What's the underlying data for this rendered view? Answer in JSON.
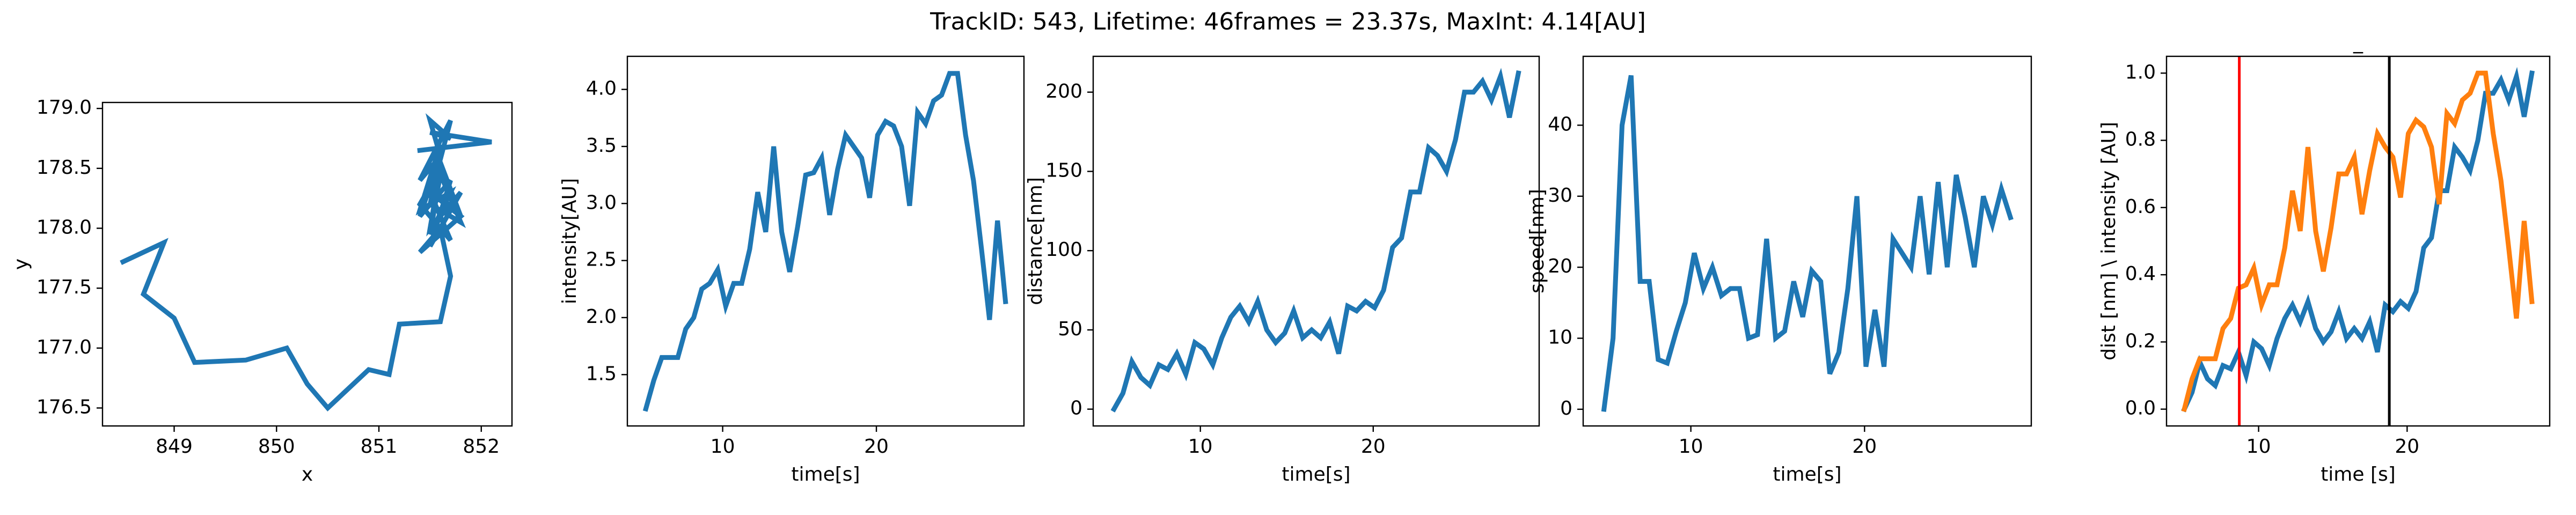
{
  "title": "TrackID: 543, Lifetime: 46frames = 23.37s, MaxInt: 4.14[AU]",
  "chart_data": [
    {
      "type": "line",
      "xlabel": "x",
      "ylabel": "y",
      "color": "#1f77b4",
      "x": [
        848.5,
        848.9,
        848.7,
        849.0,
        849.2,
        849.7,
        850.1,
        850.3,
        850.5,
        850.9,
        851.1,
        851.2,
        851.6,
        851.7,
        851.6,
        851.4,
        851.8,
        851.5,
        851.7,
        851.4,
        851.6,
        851.5,
        851.8,
        851.5,
        851.7,
        851.4,
        851.6,
        851.5,
        851.8,
        851.6,
        851.5,
        851.7,
        851.4,
        851.6,
        851.5,
        851.8,
        851.6,
        851.5,
        851.7,
        851.4,
        851.6,
        851.5,
        851.7,
        851.5,
        852.1,
        851.4
      ],
      "values": [
        177.72,
        177.88,
        177.45,
        177.25,
        176.88,
        176.9,
        177.0,
        176.7,
        176.5,
        176.82,
        176.78,
        177.2,
        177.22,
        177.6,
        178.0,
        177.8,
        178.1,
        178.3,
        177.9,
        178.2,
        178.5,
        178.0,
        178.3,
        177.85,
        178.4,
        178.1,
        178.6,
        178.2,
        178.05,
        178.45,
        177.95,
        178.3,
        178.15,
        178.7,
        178.35,
        178.1,
        178.55,
        178.25,
        178.9,
        178.4,
        178.6,
        178.9,
        178.75,
        178.8,
        178.72,
        178.65
      ],
      "xlim": [
        848.3,
        852.3
      ],
      "xticks": [
        849,
        850,
        851,
        852
      ],
      "ylim": [
        176.35,
        179.05
      ],
      "yticks": [
        176.5,
        {
          "value": 177,
          "label": "177.0"
        },
        177.5,
        {
          "value": 178,
          "label": "178.0"
        },
        178.5,
        {
          "value": 179,
          "label": "179.0"
        }
      ]
    },
    {
      "type": "line",
      "xlabel": "time[s]",
      "ylabel": "intensity[AU]",
      "color": "#1f77b4",
      "x": [
        5.0,
        5.52,
        6.04,
        6.56,
        7.08,
        7.6,
        8.12,
        8.64,
        9.16,
        9.68,
        10.2,
        10.72,
        11.24,
        11.76,
        12.28,
        12.8,
        13.32,
        13.84,
        14.36,
        14.88,
        15.4,
        15.92,
        16.44,
        16.96,
        17.48,
        18.0,
        18.52,
        19.04,
        19.56,
        20.08,
        20.6,
        21.12,
        21.64,
        22.16,
        22.68,
        23.2,
        23.72,
        24.24,
        24.76,
        25.28,
        25.8,
        26.32,
        26.84,
        27.36,
        27.88,
        28.4
      ],
      "values": [
        1.2,
        1.45,
        1.65,
        1.65,
        1.65,
        1.9,
        2.0,
        2.25,
        2.3,
        2.42,
        2.1,
        2.3,
        2.3,
        2.6,
        3.1,
        2.75,
        3.5,
        2.75,
        2.4,
        2.8,
        3.25,
        3.27,
        3.4,
        2.9,
        3.3,
        3.6,
        3.5,
        3.4,
        3.05,
        3.6,
        3.72,
        3.68,
        3.5,
        2.98,
        3.8,
        3.7,
        3.9,
        3.95,
        4.14,
        4.14,
        3.6,
        3.2,
        2.6,
        1.98,
        2.85,
        2.14
      ],
      "xlim": [
        3.8,
        29.6
      ],
      "xticks": [
        10,
        20
      ],
      "ylim": [
        1.05,
        4.29
      ],
      "yticks": [
        1.5,
        {
          "value": 2,
          "label": "2.0"
        },
        2.5,
        {
          "value": 3,
          "label": "3.0"
        },
        3.5,
        {
          "value": 4,
          "label": "4.0"
        }
      ]
    },
    {
      "type": "line",
      "xlabel": "time[s]",
      "ylabel": "distance[nm]",
      "color": "#1f77b4",
      "x": [
        5.0,
        5.52,
        6.04,
        6.56,
        7.08,
        7.6,
        8.12,
        8.64,
        9.16,
        9.68,
        10.2,
        10.72,
        11.24,
        11.76,
        12.28,
        12.8,
        13.32,
        13.84,
        14.36,
        14.88,
        15.4,
        15.92,
        16.44,
        16.96,
        17.48,
        18.0,
        18.52,
        19.04,
        19.56,
        20.08,
        20.6,
        21.12,
        21.64,
        22.16,
        22.68,
        23.2,
        23.72,
        24.24,
        24.76,
        25.28,
        25.8,
        26.32,
        26.84,
        27.36,
        27.88,
        28.4
      ],
      "values": [
        0,
        10,
        30,
        20,
        15,
        28,
        25,
        35,
        22,
        42,
        38,
        28,
        45,
        58,
        65,
        55,
        68,
        50,
        42,
        48,
        62,
        45,
        50,
        45,
        55,
        35,
        65,
        62,
        68,
        64,
        75,
        102,
        108,
        137,
        137,
        165,
        160,
        150,
        170,
        200,
        200,
        207,
        195,
        210,
        184,
        212
      ],
      "xlim": [
        3.8,
        29.6
      ],
      "xticks": [
        10,
        20
      ],
      "ylim": [
        -10.6,
        222.6
      ],
      "yticks": [
        0,
        50,
        100,
        150,
        200
      ]
    },
    {
      "type": "line",
      "xlabel": "time[s]",
      "ylabel": "speed[nm]",
      "color": "#1f77b4",
      "x": [
        5.0,
        5.52,
        6.04,
        6.56,
        7.08,
        7.6,
        8.12,
        8.64,
        9.16,
        9.68,
        10.2,
        10.72,
        11.24,
        11.76,
        12.28,
        12.8,
        13.32,
        13.84,
        14.36,
        14.88,
        15.4,
        15.92,
        16.44,
        16.96,
        17.48,
        18.0,
        18.52,
        19.04,
        19.56,
        20.08,
        20.6,
        21.12,
        21.64,
        22.16,
        22.68,
        23.2,
        23.72,
        24.24,
        24.76,
        25.28,
        25.8,
        26.32,
        26.84,
        27.36,
        27.88,
        28.4
      ],
      "values": [
        0,
        10,
        40,
        47,
        18,
        18,
        7,
        6.5,
        11,
        15,
        22,
        17,
        20,
        16,
        17,
        17,
        10,
        10.5,
        24,
        10,
        11,
        18,
        13,
        19.5,
        18,
        5,
        8,
        17,
        30,
        6,
        14,
        6,
        24,
        22,
        20,
        30,
        19,
        32,
        20,
        33,
        27,
        20,
        30,
        26,
        31,
        27
      ],
      "xlim": [
        3.8,
        29.6
      ],
      "xticks": [
        10,
        20
      ],
      "ylim": [
        -2.35,
        49.7
      ],
      "yticks": [
        0,
        10,
        20,
        30,
        40
      ]
    },
    {
      "type": "line",
      "title": "_",
      "xlabel": "time [s]",
      "ylabel": "dist [nm] \\ intensity [AU]",
      "x": [
        5.0,
        5.52,
        6.04,
        6.56,
        7.08,
        7.6,
        8.12,
        8.64,
        9.16,
        9.68,
        10.2,
        10.72,
        11.24,
        11.76,
        12.28,
        12.8,
        13.32,
        13.84,
        14.36,
        14.88,
        15.4,
        15.92,
        16.44,
        16.96,
        17.48,
        18.0,
        18.52,
        19.04,
        19.56,
        20.08,
        20.6,
        21.12,
        21.64,
        22.16,
        22.68,
        23.2,
        23.72,
        24.24,
        24.76,
        25.28,
        25.8,
        26.32,
        26.84,
        27.36,
        27.88,
        28.4
      ],
      "series": [
        {
          "color": "#1f77b4",
          "values": [
            0,
            0.05,
            0.14,
            0.09,
            0.07,
            0.13,
            0.12,
            0.17,
            0.1,
            0.2,
            0.18,
            0.13,
            0.21,
            0.27,
            0.31,
            0.26,
            0.32,
            0.24,
            0.2,
            0.23,
            0.29,
            0.21,
            0.24,
            0.21,
            0.26,
            0.17,
            0.31,
            0.29,
            0.32,
            0.3,
            0.35,
            0.48,
            0.51,
            0.65,
            0.65,
            0.78,
            0.75,
            0.71,
            0.8,
            0.94,
            0.94,
            0.98,
            0.92,
            0.99,
            0.87,
            1.0
          ]
        },
        {
          "color": "#ff7f0e",
          "values": [
            0,
            0.09,
            0.15,
            0.15,
            0.15,
            0.24,
            0.27,
            0.36,
            0.37,
            0.42,
            0.31,
            0.37,
            0.37,
            0.48,
            0.65,
            0.53,
            0.78,
            0.53,
            0.41,
            0.54,
            0.7,
            0.7,
            0.75,
            0.58,
            0.71,
            0.82,
            0.78,
            0.75,
            0.63,
            0.82,
            0.86,
            0.84,
            0.78,
            0.61,
            0.88,
            0.85,
            0.92,
            0.94,
            1.0,
            1.0,
            0.82,
            0.68,
            0.48,
            0.27,
            0.56,
            0.32
          ]
        }
      ],
      "vlines": [
        {
          "x": 8.7,
          "color": "#ff0000"
        },
        {
          "x": 18.8,
          "color": "#000000"
        }
      ],
      "xlim": [
        3.8,
        29.6
      ],
      "xticks": [
        10,
        20
      ],
      "ylim": [
        -0.05,
        1.05
      ],
      "yticks": [
        {
          "value": 0,
          "label": "0.0"
        },
        0.2,
        0.4,
        0.6,
        0.8,
        {
          "value": 1,
          "label": "1.0"
        }
      ]
    }
  ]
}
